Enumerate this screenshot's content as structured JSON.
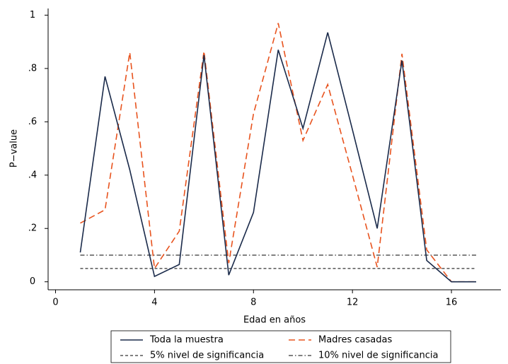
{
  "chart_data": {
    "type": "line",
    "x_label": "Edad en años",
    "y_label": "P−value",
    "x": [
      1,
      2,
      3,
      4,
      5,
      6,
      7,
      8,
      9,
      10,
      11,
      12,
      13,
      14,
      15,
      16,
      17
    ],
    "series": [
      {
        "name": "Toda la muestra",
        "color": "#1a2a4a",
        "line_style": "solid",
        "values": [
          0.11,
          0.77,
          0.42,
          0.02,
          0.065,
          0.85,
          0.025,
          0.26,
          0.87,
          0.575,
          0.935,
          0.57,
          0.2,
          0.83,
          0.08,
          0,
          0
        ]
      },
      {
        "name": "Madres casadas",
        "color": "#e8531e",
        "line_style": "long-dash",
        "values": [
          0.22,
          0.27,
          0.86,
          0.05,
          0.19,
          0.865,
          0.07,
          0.63,
          0.97,
          0.53,
          0.74,
          0.4,
          0.055,
          0.855,
          0.12,
          0,
          0
        ]
      },
      {
        "name": "5% nivel de significancia",
        "color": "#000000",
        "line_style": "short-dash",
        "values": [
          0.05,
          0.05,
          0.05,
          0.05,
          0.05,
          0.05,
          0.05,
          0.05,
          0.05,
          0.05,
          0.05,
          0.05,
          0.05,
          0.05,
          0.05,
          0.05,
          0.05
        ]
      },
      {
        "name": "10% nivel de significancia",
        "color": "#000000",
        "line_style": "dash-dot",
        "values": [
          0.1,
          0.1,
          0.1,
          0.1,
          0.1,
          0.1,
          0.1,
          0.1,
          0.1,
          0.1,
          0.1,
          0.1,
          0.1,
          0.1,
          0.1,
          0.1,
          0.1
        ]
      }
    ],
    "xlim": [
      -0.3,
      18
    ],
    "xticks": [
      0,
      4,
      8,
      12,
      16
    ],
    "ylim": [
      -0.03,
      1.025
    ],
    "yticks": [
      0,
      {
        "value": 0.2,
        "label": ".2"
      },
      {
        "value": 0.4,
        "label": ".4"
      },
      {
        "value": 0.6,
        "label": ".6"
      },
      {
        "value": 0.8,
        "label": ".8"
      },
      1
    ],
    "grid": false,
    "legend_position": "bottom"
  }
}
